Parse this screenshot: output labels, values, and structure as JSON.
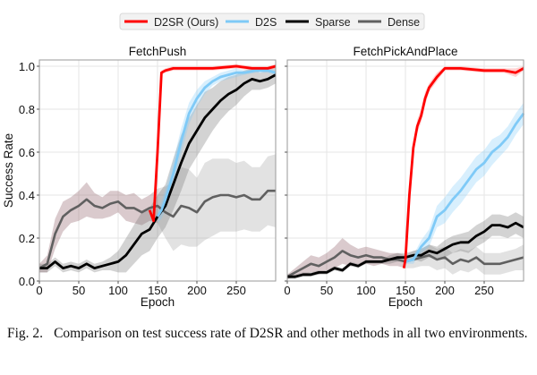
{
  "legend": {
    "placement": "top-center",
    "items": [
      {
        "label": "D2SR (Ours)",
        "color": "#ff0000"
      },
      {
        "label": "D2S",
        "color": "#7fcaf7"
      },
      {
        "label": "Sparse",
        "color": "#000000"
      },
      {
        "label": "Dense",
        "color": "#606060"
      }
    ]
  },
  "caption": {
    "label": "Fig. 2.",
    "text": "Comparison on test success rate of D2SR and other methods in all two environments."
  },
  "chart_data": [
    {
      "type": "line",
      "title": "FetchPush",
      "xlabel": "Epoch",
      "ylabel": "Success Rate",
      "xlim": [
        0,
        300
      ],
      "ylim": [
        0,
        1.0
      ],
      "xticks": [
        "0",
        "50",
        "100",
        "150",
        "200",
        "250"
      ],
      "yticks": [
        "0.0",
        "0.2",
        "0.4",
        "0.6",
        "0.8",
        "1.0"
      ],
      "grid": true,
      "series": [
        {
          "name": "Dense",
          "color": "#606060",
          "x": [
            0,
            10,
            20,
            30,
            40,
            50,
            60,
            70,
            80,
            90,
            100,
            110,
            120,
            130,
            140,
            150,
            160,
            170,
            180,
            190,
            200,
            210,
            220,
            230,
            240,
            250,
            260,
            270,
            280,
            290,
            300
          ],
          "y": [
            0.06,
            0.08,
            0.22,
            0.3,
            0.33,
            0.35,
            0.38,
            0.35,
            0.34,
            0.36,
            0.37,
            0.34,
            0.34,
            0.32,
            0.34,
            0.35,
            0.32,
            0.3,
            0.35,
            0.34,
            0.32,
            0.37,
            0.39,
            0.4,
            0.4,
            0.39,
            0.4,
            0.38,
            0.38,
            0.42,
            0.42
          ],
          "spread": [
            0.02,
            0.04,
            0.07,
            0.07,
            0.06,
            0.07,
            0.08,
            0.06,
            0.05,
            0.06,
            0.05,
            0.06,
            0.07,
            0.06,
            0.06,
            0.08,
            0.12,
            0.16,
            0.18,
            0.18,
            0.16,
            0.18,
            0.18,
            0.17,
            0.17,
            0.16,
            0.16,
            0.15,
            0.15,
            0.16,
            0.17
          ]
        },
        {
          "name": "Sparse",
          "color": "#000000",
          "x": [
            0,
            10,
            20,
            30,
            40,
            50,
            60,
            70,
            80,
            90,
            100,
            110,
            120,
            130,
            140,
            150,
            160,
            170,
            180,
            190,
            200,
            210,
            220,
            230,
            240,
            250,
            260,
            270,
            280,
            290,
            300
          ],
          "y": [
            0.06,
            0.06,
            0.09,
            0.06,
            0.07,
            0.06,
            0.08,
            0.06,
            0.07,
            0.08,
            0.09,
            0.12,
            0.17,
            0.22,
            0.24,
            0.3,
            0.35,
            0.45,
            0.55,
            0.64,
            0.7,
            0.76,
            0.8,
            0.84,
            0.87,
            0.89,
            0.92,
            0.94,
            0.93,
            0.94,
            0.96
          ],
          "spread": [
            0.02,
            0.02,
            0.02,
            0.02,
            0.02,
            0.02,
            0.02,
            0.02,
            0.02,
            0.03,
            0.05,
            0.08,
            0.09,
            0.1,
            0.1,
            0.1,
            0.1,
            0.12,
            0.13,
            0.12,
            0.12,
            0.12,
            0.1,
            0.09,
            0.08,
            0.07,
            0.06,
            0.05,
            0.04,
            0.04,
            0.04
          ]
        },
        {
          "name": "D2S",
          "color": "#7fcaf7",
          "x": [
            150,
            155,
            160,
            170,
            180,
            190,
            200,
            210,
            220,
            230,
            240,
            250,
            260,
            275,
            290,
            300
          ],
          "y": [
            0.3,
            0.33,
            0.38,
            0.5,
            0.65,
            0.78,
            0.85,
            0.9,
            0.93,
            0.95,
            0.96,
            0.97,
            0.97,
            0.98,
            0.98,
            0.97
          ],
          "spread": [
            0.03,
            0.04,
            0.05,
            0.06,
            0.06,
            0.05,
            0.04,
            0.03,
            0.02,
            0.02,
            0.02,
            0.02,
            0.01,
            0.01,
            0.01,
            0.01
          ]
        },
        {
          "name": "D2SR (Ours)",
          "color": "#ff0000",
          "x": [
            140,
            145,
            150,
            155,
            160,
            170,
            180,
            200,
            220,
            250,
            270,
            290,
            300
          ],
          "y": [
            0.33,
            0.28,
            0.6,
            0.97,
            0.98,
            0.99,
            0.99,
            0.99,
            0.99,
            1.0,
            0.99,
            0.99,
            1.0
          ],
          "spread": [
            0.01,
            0.01,
            0.01,
            0.01,
            0.01,
            0.01,
            0.01,
            0.01,
            0.01,
            0.01,
            0.01,
            0.01,
            0.01
          ]
        }
      ]
    },
    {
      "type": "line",
      "title": "FetchPickAndPlace",
      "xlabel": "Epoch",
      "ylabel": "",
      "xlim": [
        0,
        300
      ],
      "ylim": [
        0,
        1.0
      ],
      "xticks": [
        "0",
        "50",
        "100",
        "150",
        "200",
        "250"
      ],
      "yticks": [],
      "grid": true,
      "series": [
        {
          "name": "Dense",
          "color": "#606060",
          "x": [
            0,
            10,
            20,
            30,
            40,
            50,
            60,
            70,
            80,
            90,
            100,
            110,
            120,
            130,
            140,
            150,
            160,
            170,
            180,
            190,
            200,
            210,
            220,
            230,
            240,
            250,
            260,
            270,
            280,
            290,
            300
          ],
          "y": [
            0.02,
            0.04,
            0.06,
            0.08,
            0.07,
            0.09,
            0.11,
            0.14,
            0.12,
            0.11,
            0.12,
            0.11,
            0.11,
            0.1,
            0.1,
            0.09,
            0.1,
            0.11,
            0.12,
            0.1,
            0.11,
            0.08,
            0.1,
            0.09,
            0.11,
            0.08,
            0.08,
            0.08,
            0.09,
            0.1,
            0.11
          ],
          "spread": [
            0.01,
            0.02,
            0.03,
            0.04,
            0.04,
            0.04,
            0.05,
            0.06,
            0.05,
            0.04,
            0.04,
            0.04,
            0.03,
            0.03,
            0.03,
            0.03,
            0.04,
            0.04,
            0.05,
            0.05,
            0.05,
            0.05,
            0.05,
            0.05,
            0.05,
            0.05,
            0.05,
            0.05,
            0.05,
            0.05,
            0.06
          ]
        },
        {
          "name": "Sparse",
          "color": "#000000",
          "x": [
            0,
            10,
            20,
            30,
            40,
            50,
            60,
            70,
            80,
            90,
            100,
            110,
            120,
            130,
            140,
            150,
            160,
            170,
            180,
            190,
            200,
            210,
            220,
            230,
            240,
            250,
            260,
            270,
            280,
            290,
            300
          ],
          "y": [
            0.02,
            0.02,
            0.03,
            0.03,
            0.04,
            0.04,
            0.06,
            0.05,
            0.08,
            0.07,
            0.09,
            0.09,
            0.09,
            0.1,
            0.11,
            0.11,
            0.12,
            0.12,
            0.14,
            0.13,
            0.15,
            0.17,
            0.18,
            0.18,
            0.21,
            0.23,
            0.26,
            0.26,
            0.25,
            0.27,
            0.25
          ],
          "spread": [
            0.01,
            0.01,
            0.01,
            0.01,
            0.01,
            0.01,
            0.01,
            0.01,
            0.01,
            0.01,
            0.01,
            0.01,
            0.01,
            0.02,
            0.02,
            0.02,
            0.02,
            0.03,
            0.03,
            0.03,
            0.04,
            0.04,
            0.04,
            0.05,
            0.05,
            0.05,
            0.05,
            0.05,
            0.05,
            0.05,
            0.05
          ]
        },
        {
          "name": "D2S",
          "color": "#7fcaf7",
          "x": [
            150,
            160,
            170,
            180,
            190,
            200,
            210,
            220,
            230,
            240,
            250,
            260,
            270,
            280,
            290,
            300
          ],
          "y": [
            0.09,
            0.1,
            0.16,
            0.2,
            0.3,
            0.33,
            0.38,
            0.42,
            0.47,
            0.52,
            0.55,
            0.6,
            0.63,
            0.67,
            0.73,
            0.78
          ],
          "spread": [
            0.01,
            0.02,
            0.03,
            0.04,
            0.05,
            0.06,
            0.06,
            0.06,
            0.06,
            0.06,
            0.06,
            0.06,
            0.05,
            0.05,
            0.05,
            0.05
          ]
        },
        {
          "name": "D2SR (Ours)",
          "color": "#ff0000",
          "x": [
            148,
            150,
            155,
            160,
            165,
            170,
            175,
            180,
            190,
            200,
            220,
            250,
            275,
            290,
            300
          ],
          "y": [
            0.06,
            0.1,
            0.4,
            0.62,
            0.72,
            0.77,
            0.85,
            0.9,
            0.95,
            0.99,
            0.99,
            0.98,
            0.98,
            0.97,
            0.99
          ],
          "spread": [
            0.01,
            0.02,
            0.03,
            0.03,
            0.03,
            0.03,
            0.03,
            0.02,
            0.02,
            0.01,
            0.01,
            0.01,
            0.01,
            0.02,
            0.01
          ]
        }
      ]
    }
  ]
}
